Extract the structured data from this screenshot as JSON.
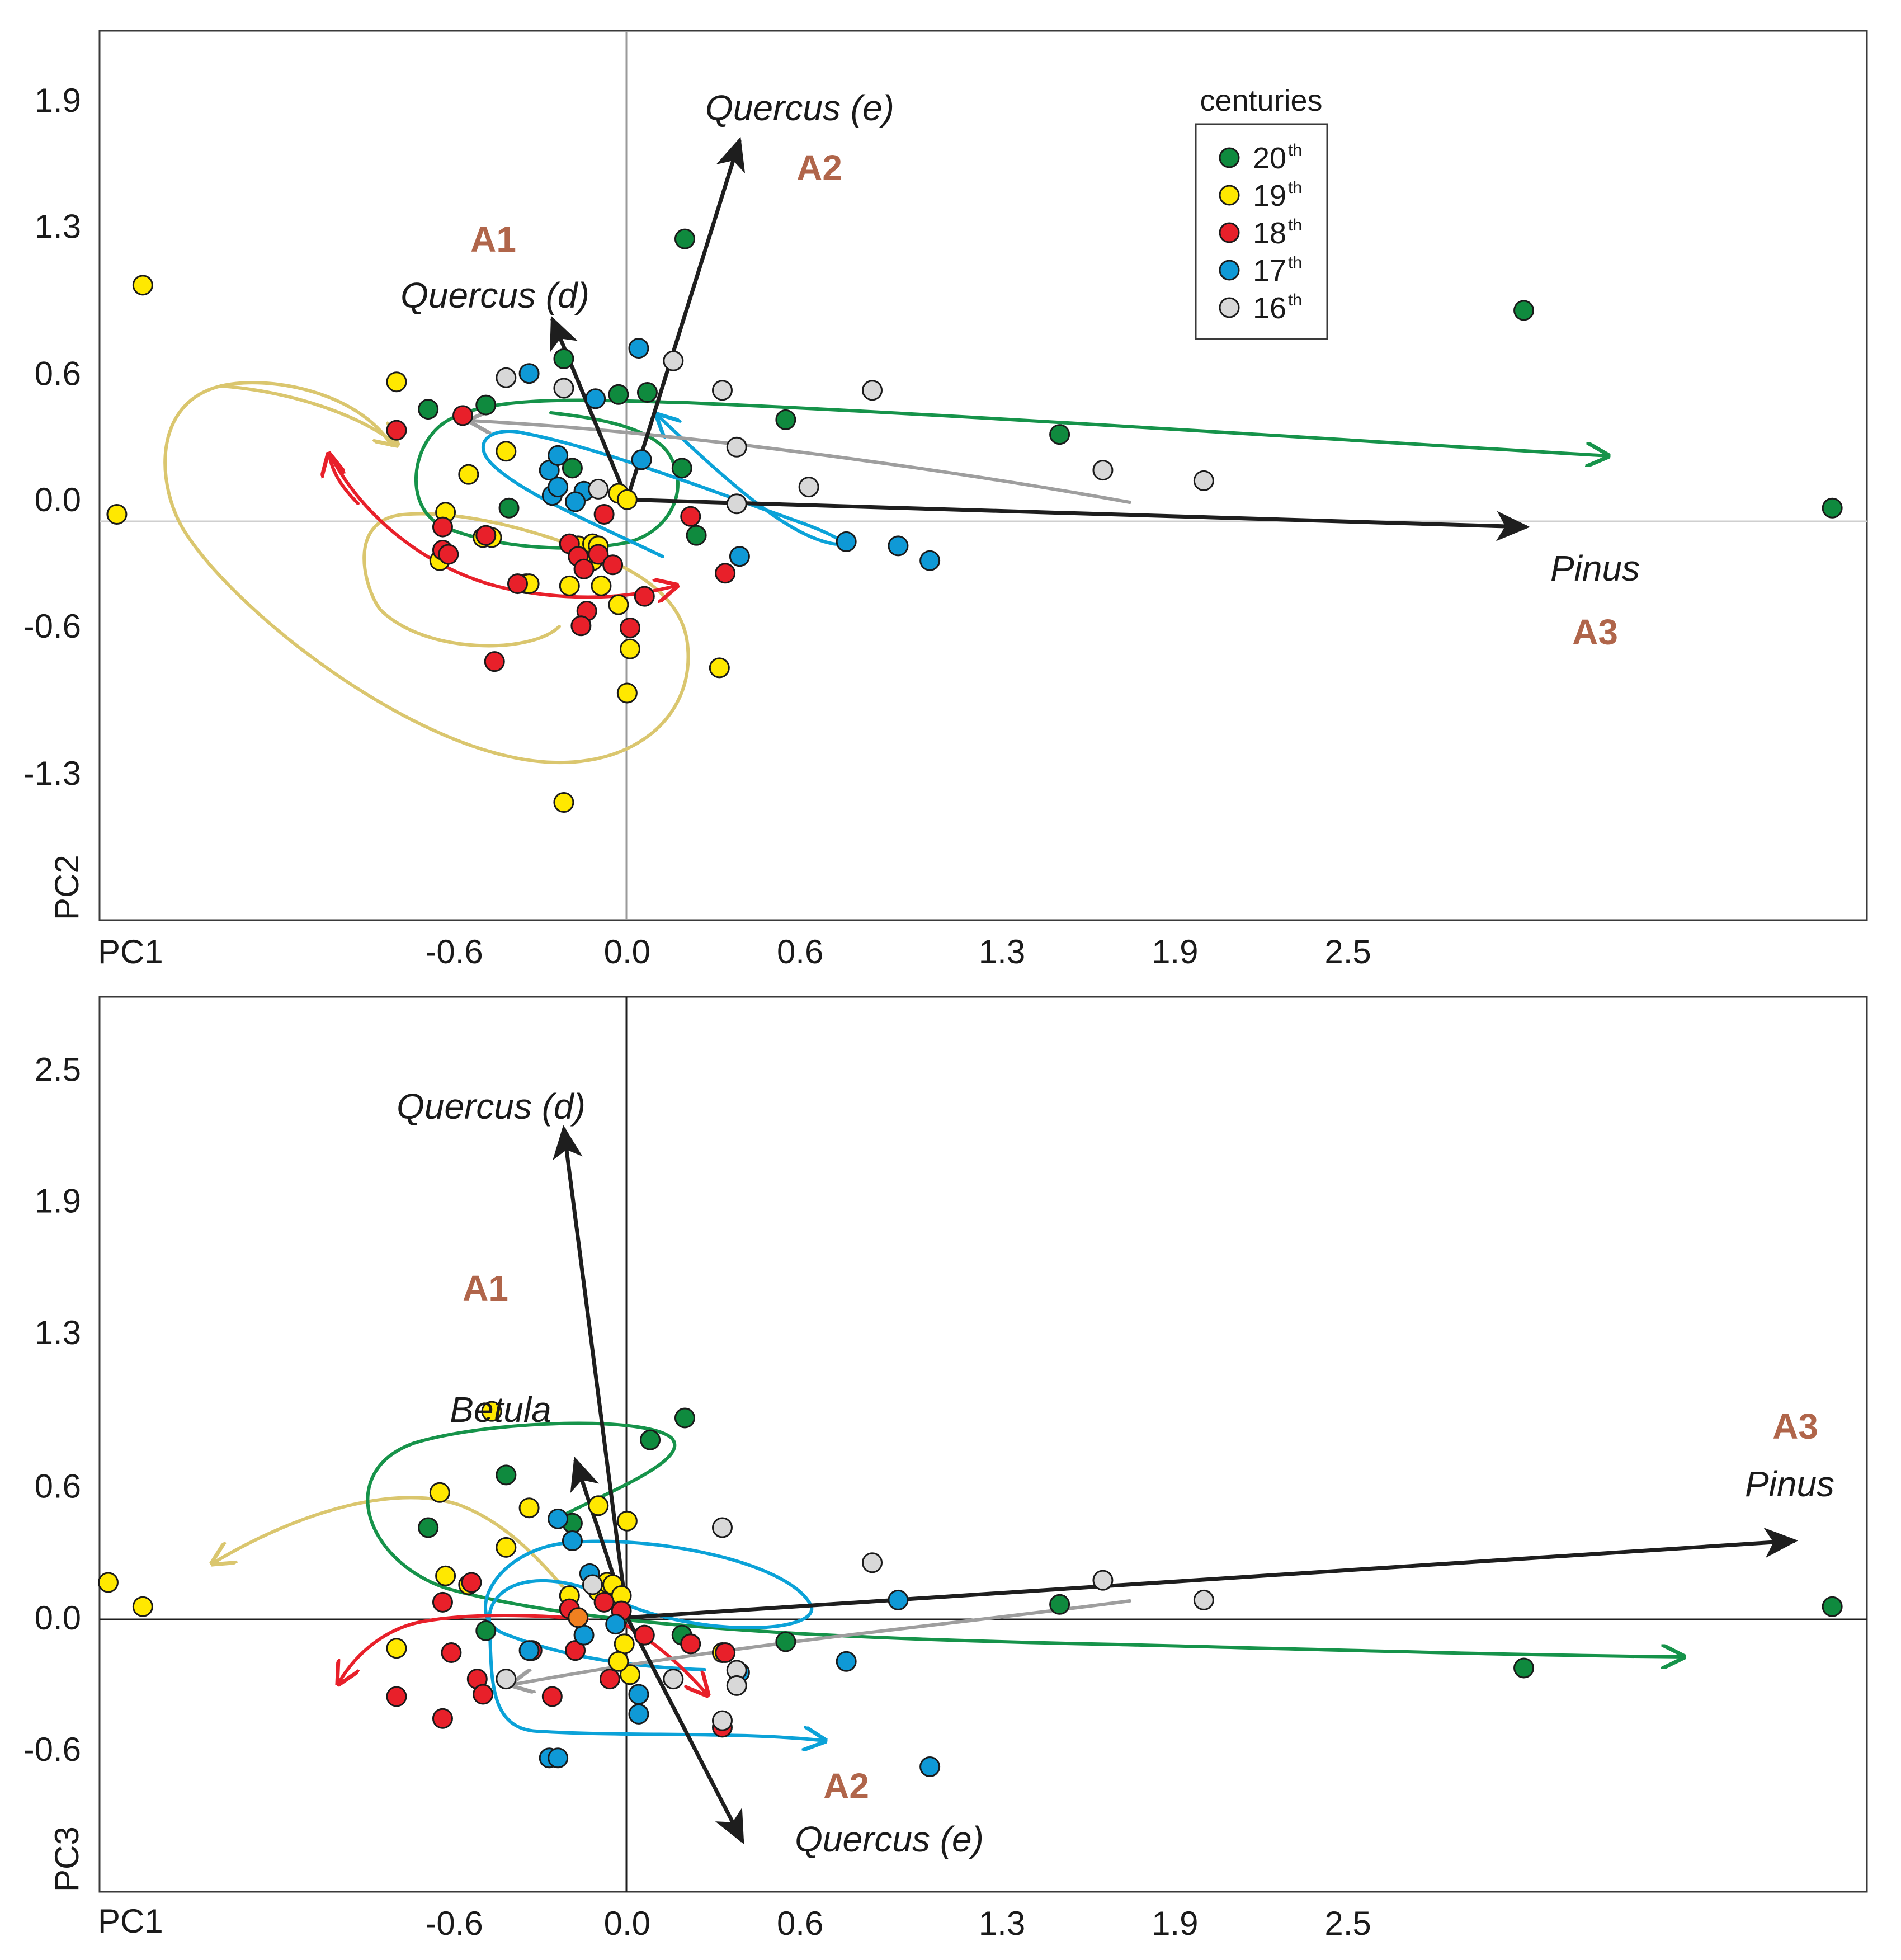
{
  "chart_data": [
    {
      "type": "scatter",
      "id": "top",
      "xlabel": "PC1",
      "ylabel": "PC2",
      "xlim": [
        -1.83,
        4.3
      ],
      "ylim": [
        -2.0,
        2.23
      ],
      "xticks": [
        -0.6,
        0.0,
        0.6,
        1.3,
        1.9,
        2.5
      ],
      "xtick_labels": [
        "-0.6",
        "0.0",
        "0.6",
        "1.3",
        "1.9",
        "2.5"
      ],
      "yticks": [
        1.9,
        1.3,
        0.6,
        0.0,
        -0.6,
        -1.3
      ],
      "ytick_labels": [
        "1.9",
        "1.3",
        "0.6",
        "0.0",
        "-0.6",
        "-1.3"
      ],
      "legend": {
        "title": "centuries",
        "entries": [
          {
            "label": "20",
            "sup": "th",
            "color": "#0f8a3e"
          },
          {
            "label": "19",
            "sup": "th",
            "color": "#ffe800"
          },
          {
            "label": "18",
            "sup": "th",
            "color": "#e8202a"
          },
          {
            "label": "17",
            "sup": "th",
            "color": "#0f99d6"
          },
          {
            "label": "16",
            "sup": "th",
            "color": "#d8d8d8"
          }
        ]
      },
      "series": [
        {
          "name": "20th",
          "color": "#0f8a3e",
          "points": [
            [
              -0.69,
              0.43
            ],
            [
              -0.49,
              0.45
            ],
            [
              -0.22,
              0.67
            ],
            [
              -0.19,
              0.15
            ],
            [
              -0.03,
              0.5
            ],
            [
              0.07,
              0.51
            ],
            [
              0.19,
              0.15
            ],
            [
              0.24,
              -0.17
            ],
            [
              0.2,
              1.24
            ],
            [
              0.55,
              0.38
            ],
            [
              1.5,
              0.31
            ],
            [
              3.11,
              0.9
            ],
            [
              4.18,
              -0.04
            ],
            [
              -0.41,
              -0.04
            ]
          ]
        },
        {
          "name": "19th",
          "color": "#ffe800",
          "points": [
            [
              -1.68,
              1.02
            ],
            [
              -1.77,
              -0.07
            ],
            [
              -0.8,
              0.56
            ],
            [
              -0.55,
              0.12
            ],
            [
              -0.42,
              0.23
            ],
            [
              -0.63,
              -0.06
            ],
            [
              -0.65,
              -0.29
            ],
            [
              -0.5,
              -0.18
            ],
            [
              -0.47,
              -0.18
            ],
            [
              -0.2,
              -0.41
            ],
            [
              -0.17,
              -0.22
            ],
            [
              -0.12,
              -0.29
            ],
            [
              -0.12,
              -0.21
            ],
            [
              -0.09,
              -0.41
            ],
            [
              -0.1,
              -0.22
            ],
            [
              -0.03,
              0.03
            ],
            [
              0.0,
              0.0
            ],
            [
              -0.03,
              -0.5
            ],
            [
              0.0,
              -0.92
            ],
            [
              0.01,
              -0.71
            ],
            [
              0.32,
              -0.8
            ],
            [
              -0.35,
              -0.4
            ],
            [
              -0.34,
              -0.4
            ],
            [
              -0.22,
              -1.44
            ]
          ]
        },
        {
          "name": "18th",
          "color": "#e8202a",
          "points": [
            [
              -0.8,
              0.33
            ],
            [
              -0.57,
              0.4
            ],
            [
              -0.64,
              -0.13
            ],
            [
              -0.64,
              -0.24
            ],
            [
              -0.62,
              -0.26
            ],
            [
              -0.49,
              -0.17
            ],
            [
              -0.2,
              -0.21
            ],
            [
              -0.17,
              -0.27
            ],
            [
              -0.1,
              -0.26
            ],
            [
              -0.05,
              -0.31
            ],
            [
              -0.15,
              -0.33
            ],
            [
              -0.08,
              -0.07
            ],
            [
              0.22,
              -0.08
            ],
            [
              0.01,
              -0.61
            ],
            [
              -0.14,
              -0.53
            ],
            [
              -0.16,
              -0.6
            ],
            [
              0.06,
              -0.46
            ],
            [
              0.34,
              -0.35
            ],
            [
              -0.38,
              -0.4
            ],
            [
              -0.46,
              -0.77
            ]
          ]
        },
        {
          "name": "17th",
          "color": "#0f99d6",
          "points": [
            [
              -0.34,
              0.6
            ],
            [
              -0.27,
              0.14
            ],
            [
              -0.26,
              0.02
            ],
            [
              -0.24,
              0.21
            ],
            [
              -0.24,
              0.06
            ],
            [
              -0.15,
              0.04
            ],
            [
              -0.11,
              0.48
            ],
            [
              0.04,
              0.72
            ],
            [
              0.05,
              0.19
            ],
            [
              0.76,
              -0.2
            ],
            [
              0.94,
              -0.22
            ],
            [
              1.05,
              -0.29
            ],
            [
              0.39,
              -0.27
            ],
            [
              -0.18,
              -0.01
            ]
          ]
        },
        {
          "name": "16th",
          "color": "#d8d8d8",
          "points": [
            [
              -0.42,
              0.58
            ],
            [
              -0.22,
              0.53
            ],
            [
              0.16,
              0.66
            ],
            [
              0.33,
              0.52
            ],
            [
              0.85,
              0.52
            ],
            [
              0.38,
              0.25
            ],
            [
              0.38,
              -0.02
            ],
            [
              -0.1,
              0.05
            ],
            [
              0.63,
              0.06
            ],
            [
              1.65,
              0.14
            ],
            [
              2.0,
              0.09
            ]
          ]
        }
      ],
      "vectors": [
        {
          "name": "Quercus (e)",
          "from": [
            0.0,
            0.0
          ],
          "to": [
            0.39,
            1.71
          ],
          "label": "Quercus (e)"
        },
        {
          "name": "Quercus (d)",
          "from": [
            0.0,
            0.0
          ],
          "to": [
            -0.26,
            0.86
          ],
          "label": "Quercus (d)"
        },
        {
          "name": "Pinus",
          "from": [
            0.0,
            0.0
          ],
          "to": [
            3.12,
            -0.13
          ],
          "label": "Pinus"
        }
      ],
      "group_labels": [
        "A1",
        "A2",
        "A3"
      ]
    },
    {
      "type": "scatter",
      "id": "bottom",
      "xlabel": "PC1",
      "ylabel": "PC3",
      "xlim": [
        -1.83,
        4.3
      ],
      "ylim": [
        -1.25,
        2.83
      ],
      "xticks": [
        -0.6,
        0.0,
        0.6,
        1.3,
        1.9,
        2.5
      ],
      "xtick_labels": [
        "-0.6",
        "0.0",
        "0.6",
        "1.3",
        "1.9",
        "2.5"
      ],
      "yticks": [
        2.5,
        1.9,
        1.3,
        0.6,
        0.0,
        -0.6
      ],
      "ytick_labels": [
        "2.5",
        "1.9",
        "1.3",
        "0.6",
        "0.0",
        "-0.6"
      ],
      "series": [
        {
          "name": "20th",
          "color": "#0f8a3e",
          "points": [
            [
              -0.69,
              0.41
            ],
            [
              -0.42,
              0.65
            ],
            [
              -0.49,
              -0.06
            ],
            [
              -0.19,
              0.43
            ],
            [
              0.08,
              0.81
            ],
            [
              0.2,
              0.91
            ],
            [
              0.19,
              -0.08
            ],
            [
              0.55,
              -0.11
            ],
            [
              1.5,
              0.06
            ],
            [
              3.11,
              -0.23
            ],
            [
              4.18,
              0.05
            ]
          ]
        },
        {
          "name": "19th",
          "color": "#ffe800",
          "points": [
            [
              -1.68,
              0.05
            ],
            [
              -1.8,
              0.16
            ],
            [
              -0.8,
              -0.14
            ],
            [
              -0.47,
              0.94
            ],
            [
              -0.65,
              0.57
            ],
            [
              -0.63,
              0.19
            ],
            [
              -0.55,
              0.15
            ],
            [
              -0.42,
              0.32
            ],
            [
              -0.34,
              0.5
            ],
            [
              -0.1,
              0.51
            ],
            [
              -0.1,
              0.12
            ],
            [
              -0.07,
              0.16
            ],
            [
              -0.05,
              0.15
            ],
            [
              -0.02,
              0.1
            ],
            [
              -0.01,
              -0.12
            ],
            [
              0.0,
              0.44
            ],
            [
              0.01,
              -0.26
            ],
            [
              -0.03,
              -0.2
            ],
            [
              -0.2,
              0.1
            ],
            [
              0.33,
              -0.16
            ]
          ]
        },
        {
          "name": "18th",
          "color": "#e8202a",
          "points": [
            [
              -0.8,
              -0.36
            ],
            [
              -0.64,
              0.07
            ],
            [
              -0.64,
              -0.46
            ],
            [
              -0.61,
              -0.16
            ],
            [
              -0.54,
              0.16
            ],
            [
              -0.52,
              -0.28
            ],
            [
              -0.5,
              -0.35
            ],
            [
              -0.33,
              -0.15
            ],
            [
              -0.2,
              0.04
            ],
            [
              -0.18,
              -0.15
            ],
            [
              -0.08,
              0.07
            ],
            [
              0.06,
              -0.08
            ],
            [
              -0.06,
              -0.28
            ],
            [
              0.22,
              -0.12
            ],
            [
              0.34,
              -0.16
            ],
            [
              0.33,
              -0.5
            ],
            [
              -0.26,
              -0.36
            ],
            [
              -0.02,
              0.03
            ]
          ]
        },
        {
          "name": "17th",
          "color": "#0f99d6",
          "points": [
            [
              -0.34,
              -0.15
            ],
            [
              -0.19,
              0.35
            ],
            [
              -0.24,
              0.45
            ],
            [
              -0.27,
              -0.64
            ],
            [
              -0.24,
              -0.64
            ],
            [
              -0.13,
              0.2
            ],
            [
              -0.04,
              -0.03
            ],
            [
              0.04,
              -0.35
            ],
            [
              0.04,
              -0.44
            ],
            [
              0.76,
              -0.2
            ],
            [
              0.94,
              0.08
            ],
            [
              1.05,
              -0.68
            ],
            [
              0.39,
              -0.25
            ],
            [
              -0.15,
              -0.08
            ]
          ]
        },
        {
          "name": "16th",
          "color": "#d8d8d8",
          "points": [
            [
              -0.42,
              -0.28
            ],
            [
              -0.12,
              0.15
            ],
            [
              0.16,
              -0.28
            ],
            [
              0.33,
              0.41
            ],
            [
              0.85,
              0.25
            ],
            [
              0.38,
              -0.24
            ],
            [
              0.38,
              -0.31
            ],
            [
              0.33,
              -0.47
            ],
            [
              1.65,
              0.17
            ],
            [
              2.0,
              0.08
            ]
          ]
        },
        {
          "name": "other",
          "color": "#f08020",
          "points": [
            [
              -0.17,
              0.0
            ]
          ]
        }
      ],
      "vectors": [
        {
          "name": "Quercus (d)",
          "from": [
            0.0,
            0.0
          ],
          "to": [
            -0.22,
            2.23
          ],
          "label": "Quercus (d)"
        },
        {
          "name": "Betula",
          "from": [
            0.0,
            0.0
          ],
          "to": [
            -0.18,
            0.72
          ],
          "label": "Betula"
        },
        {
          "name": "Pinus",
          "from": [
            0.0,
            0.0
          ],
          "to": [
            4.05,
            0.35
          ],
          "label": "Pinus"
        },
        {
          "name": "Quercus (e)",
          "from": [
            0.0,
            0.0
          ],
          "to": [
            0.4,
            -1.02
          ],
          "label": "Quercus (e)"
        }
      ],
      "group_labels": [
        "A1",
        "A2",
        "A3"
      ]
    }
  ]
}
